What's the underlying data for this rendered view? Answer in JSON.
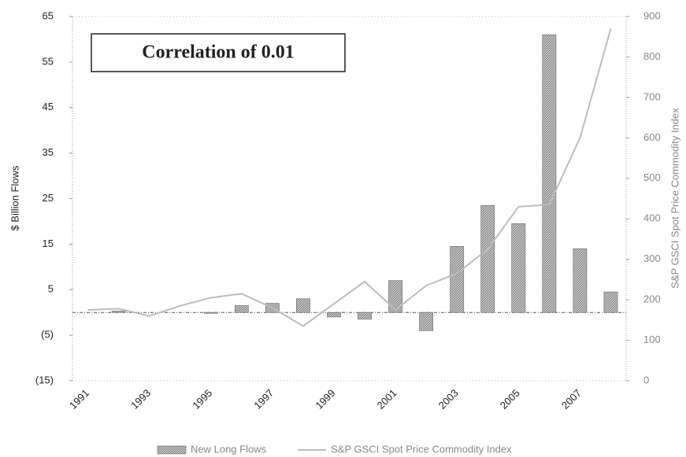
{
  "chart_data": {
    "type": "bar_line",
    "annotation": "Correlation of 0.01",
    "y_label": "$ Billion Flows",
    "y2_label": "S&P GSCI Spot Price Commodity Index",
    "categories": [
      "1991",
      null,
      "1993",
      null,
      "1995",
      null,
      "1997",
      null,
      "1999",
      null,
      "2001",
      null,
      "2003",
      null,
      "2005",
      null,
      "2007",
      null
    ],
    "series": [
      {
        "name": "New Long Flows",
        "type": "bar",
        "color": "#a8a8a8",
        "values": [
          0,
          0.3,
          0,
          0,
          -0.2,
          1.5,
          2,
          3,
          -1,
          -1.5,
          7,
          -4,
          14.5,
          23.5,
          19.5,
          61,
          14,
          4.5
        ]
      },
      {
        "name": "S&P GSCI Spot Price Commodity Index",
        "type": "line",
        "axis": "y2",
        "color": "#bdbdbd",
        "values": [
          175,
          178,
          160,
          185,
          205,
          215,
          180,
          135,
          190,
          245,
          175,
          235,
          265,
          325,
          430,
          435,
          600,
          870
        ]
      }
    ],
    "ylim": [
      -15,
      65
    ],
    "yticks": [
      {
        "value": -15,
        "label": "(15)"
      },
      {
        "value": -5,
        "label": "(5)"
      },
      5,
      15,
      25,
      35,
      45,
      55,
      65
    ],
    "y2lim": [
      0,
      900
    ],
    "y2ticks": [
      0,
      100,
      200,
      300,
      400,
      500,
      600,
      700,
      800,
      900
    ],
    "legend": "bottom"
  }
}
